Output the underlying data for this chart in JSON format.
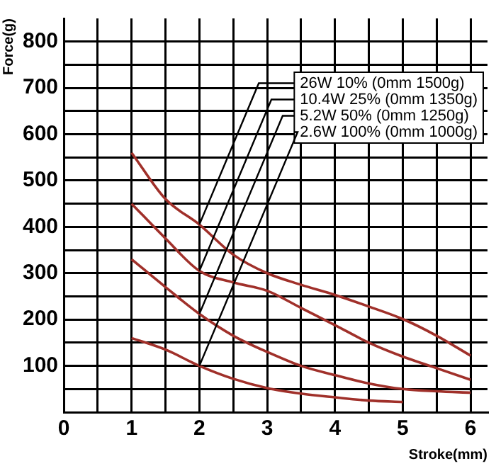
{
  "chart_data": {
    "type": "line",
    "xlabel": "Stroke(mm)",
    "ylabel": "Force(g)",
    "x": [
      1,
      1.5,
      2,
      2.5,
      3,
      3.5,
      4,
      4.5,
      5,
      5.5,
      6
    ],
    "series": [
      {
        "name": "26W 10% (0mm 1500g)",
        "color": "#a0302a",
        "values": [
          560,
          460,
          405,
          340,
          300,
          275,
          253,
          228,
          201,
          165,
          122
        ]
      },
      {
        "name": "10.4W 25% (0mm 1350g)",
        "color": "#a0302a",
        "values": [
          450,
          375,
          305,
          280,
          262,
          225,
          188,
          150,
          120,
          95,
          70
        ]
      },
      {
        "name": "5.2W 50% (0mm 1250g)",
        "color": "#a0302a",
        "values": [
          330,
          270,
          212,
          165,
          130,
          100,
          80,
          62,
          50,
          45,
          42
        ]
      },
      {
        "name": "2.6W 100% (0mm 1000g)",
        "color": "#a0302a",
        "values": [
          160,
          135,
          100,
          72,
          52,
          40,
          32,
          25,
          22,
          null,
          null
        ]
      }
    ],
    "xlim": [
      0,
      6.25
    ],
    "xticks": [
      0,
      {
        "value": 0.5,
        "label": null
      },
      1,
      {
        "value": 1.5,
        "label": null
      },
      2,
      {
        "value": 2.5,
        "label": null
      },
      3,
      {
        "value": 3.5,
        "label": null
      },
      4,
      {
        "value": 4.5,
        "label": null
      },
      5,
      {
        "value": 5.5,
        "label": null
      },
      6
    ],
    "ylim": [
      0,
      850
    ],
    "yticks": [
      {
        "value": 0,
        "label": null
      },
      {
        "value": 50,
        "label": null
      },
      100,
      {
        "value": 150,
        "label": null
      },
      200,
      {
        "value": 250,
        "label": null
      },
      300,
      {
        "value": 350,
        "label": null
      },
      400,
      {
        "value": 450,
        "label": null
      },
      500,
      {
        "value": 550,
        "label": null
      },
      600,
      {
        "value": 650,
        "label": null
      },
      700,
      {
        "value": 750,
        "label": null
      },
      800
    ],
    "grid": true,
    "legend": "top right",
    "marker": "none",
    "line_style": "solid"
  }
}
